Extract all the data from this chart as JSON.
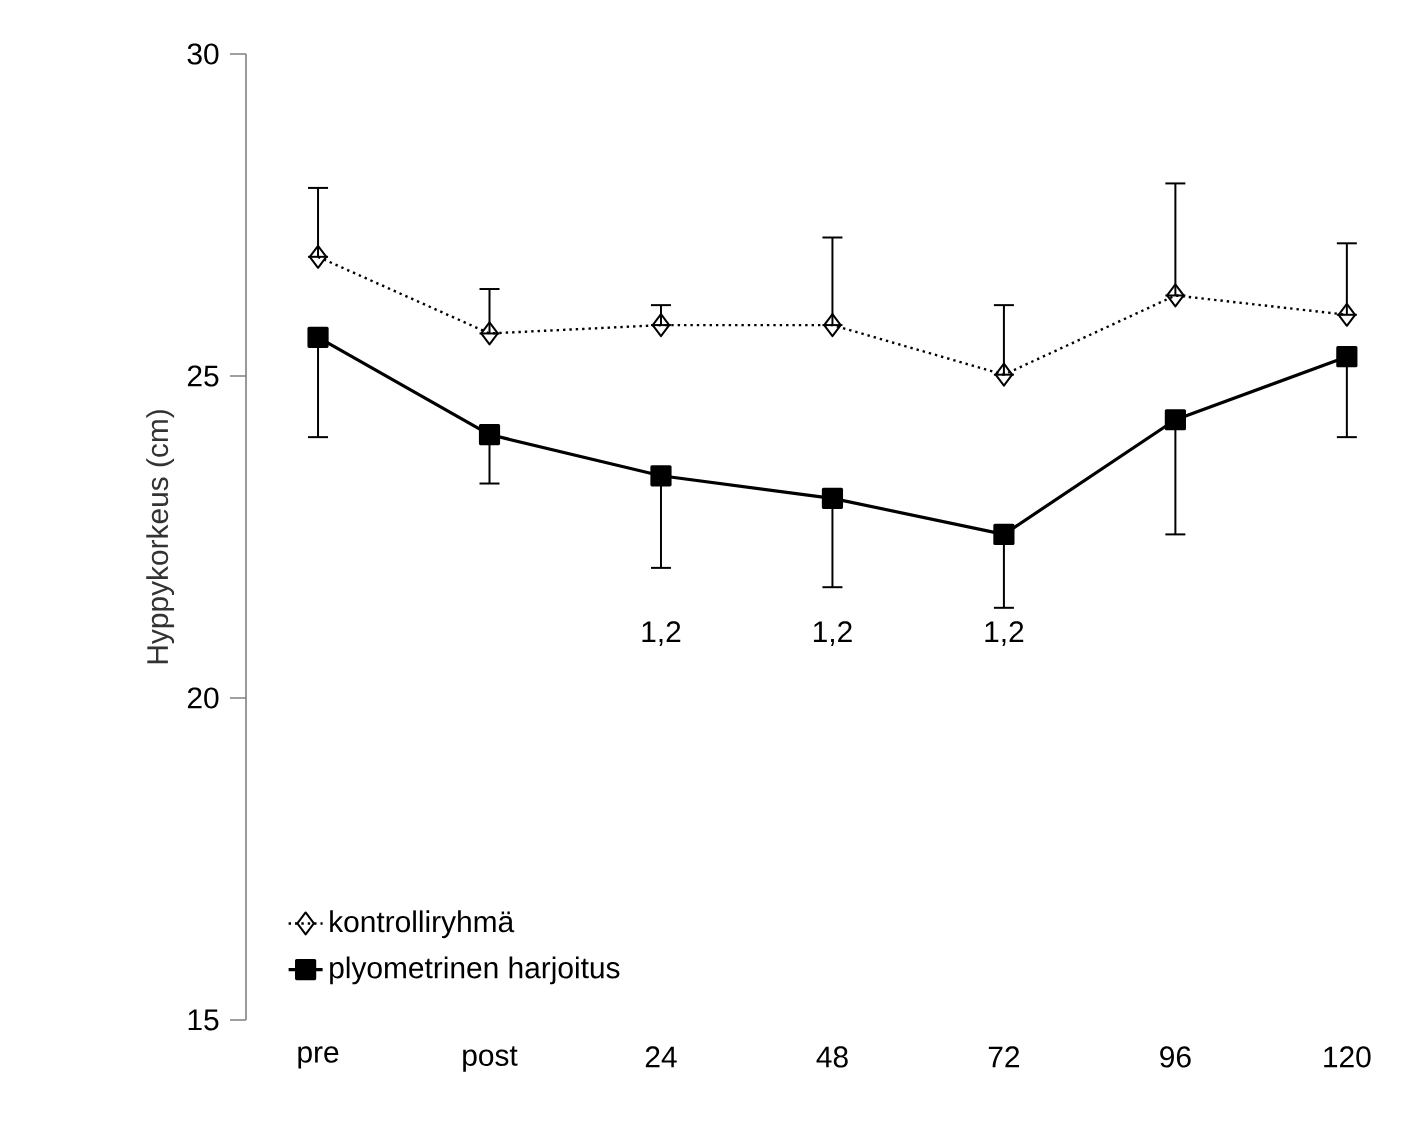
{
  "chart_data": {
    "type": "line",
    "ylabel": "Hyppykorkeus (cm)",
    "categories": [
      "pre",
      "post",
      "24",
      "48",
      "72",
      "96",
      "120"
    ],
    "series": [
      {
        "name": "kontrolliryhmä",
        "color": "#000000",
        "marker": "diamond",
        "line_style": "dotted",
        "values": [
          26.85,
          25.66,
          25.79,
          25.79,
          25.02,
          26.25,
          25.95
        ],
        "errors": [
          [
            26.85,
            27.92
          ],
          [
            25.66,
            26.35
          ],
          [
            25.79,
            26.1
          ],
          [
            25.79,
            27.15
          ],
          [
            25.02,
            26.1
          ],
          [
            26.25,
            27.99
          ],
          [
            25.95,
            27.06
          ]
        ]
      },
      {
        "name": "plyometrinen harjoitus",
        "color": "#000000",
        "marker": "square",
        "line_style": "solid",
        "values": [
          25.6,
          24.09,
          23.45,
          23.1,
          22.54,
          24.32,
          25.3
        ],
        "errors": [
          [
            24.05,
            25.6
          ],
          [
            23.33,
            24.09
          ],
          [
            22.02,
            23.45
          ],
          [
            21.72,
            23.1
          ],
          [
            21.4,
            22.54
          ],
          [
            22.54,
            24.32
          ],
          [
            24.05,
            25.3
          ]
        ]
      }
    ],
    "ylim": [
      15,
      30
    ],
    "yticks": [
      15,
      20,
      25,
      30
    ],
    "grid": false,
    "legend": "bottom left",
    "annotations": [
      "1,2",
      "1,2",
      "1,2"
    ]
  }
}
